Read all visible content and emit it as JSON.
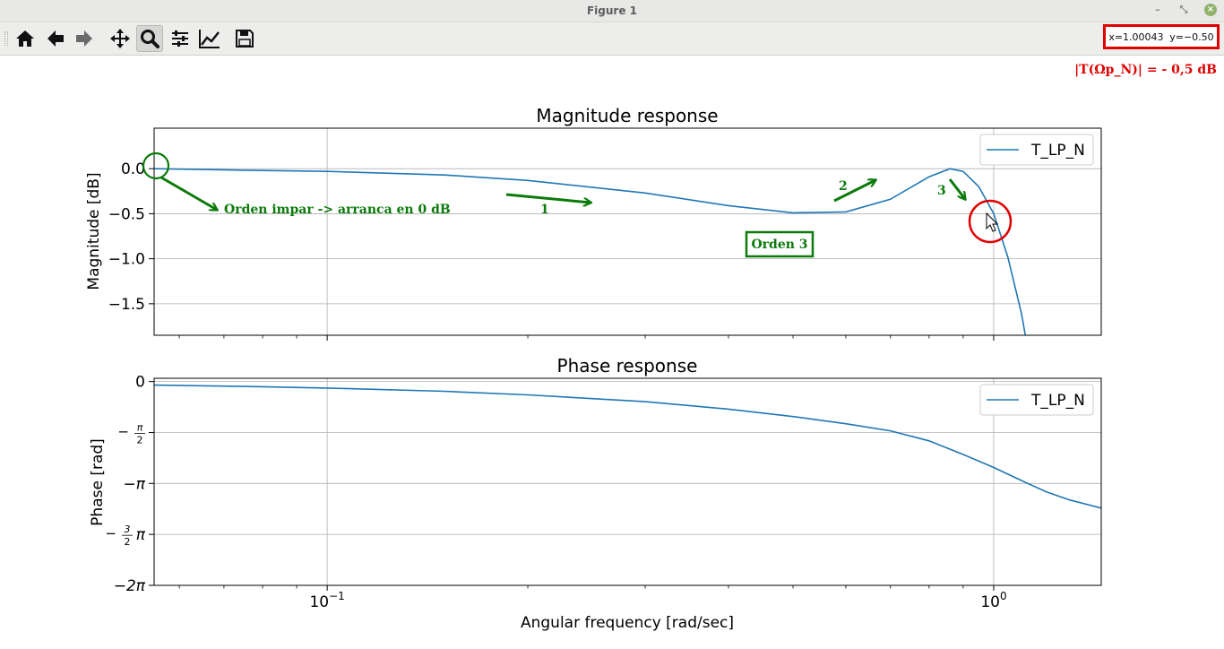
{
  "window": {
    "title": "Figure 1"
  },
  "toolbar": {
    "buttons": [
      "home-icon",
      "back-icon",
      "forward-icon",
      "pan-icon",
      "zoom-icon",
      "configure-icon",
      "edit-curves-icon",
      "save-icon"
    ],
    "coords": {
      "x": "x=1.00043",
      "y": "y=−0.50"
    }
  },
  "annotations": {
    "top_right": "|T(Ωp_N)| = - 0,5 dB",
    "odd_order": "Orden impar -> arranca en 0 dB",
    "order_box": "Orden 3",
    "n1": "1",
    "n2": "2",
    "n3": "3"
  },
  "colors": {
    "line": "#1f77b4",
    "annotation_green": "#0a7a0a",
    "highlight_red": "#e00000"
  },
  "chart_data": [
    {
      "type": "line",
      "title": "Magnitude response",
      "ylabel": "Magnitude [dB]",
      "xscale": "log",
      "xlim": [
        0.055,
        1.45
      ],
      "ylim": [
        -1.85,
        0.45
      ],
      "yticks": [
        "0.0",
        "−0.5",
        "−1.0",
        "−1.5"
      ],
      "legend": {
        "position": "top-right",
        "entries": [
          "T_LP_N"
        ]
      },
      "grid": true,
      "series": [
        {
          "name": "T_LP_N",
          "x": [
            0.055,
            0.08,
            0.1,
            0.15,
            0.2,
            0.3,
            0.4,
            0.5,
            0.6,
            0.7,
            0.8,
            0.86,
            0.9,
            0.95,
            1.0,
            1.05,
            1.1,
            1.15
          ],
          "y": [
            0.0,
            -0.02,
            -0.03,
            -0.07,
            -0.13,
            -0.27,
            -0.41,
            -0.49,
            -0.48,
            -0.34,
            -0.09,
            0.0,
            -0.03,
            -0.2,
            -0.5,
            -0.98,
            -1.6,
            -2.4
          ]
        }
      ]
    },
    {
      "type": "line",
      "title": "Phase response",
      "ylabel": "Phase [rad]",
      "xlabel": "Angular frequency [rad/sec]",
      "xscale": "log",
      "xlim": [
        0.055,
        1.45
      ],
      "ylim": [
        -6.2832,
        0.1
      ],
      "xticks": [
        "10−1",
        "100"
      ],
      "yticks": [
        "0",
        "−π/2",
        "−π",
        "−3/2 π",
        "−2π"
      ],
      "legend": {
        "position": "top-right",
        "entries": [
          "T_LP_N"
        ]
      },
      "grid": true,
      "series": [
        {
          "name": "T_LP_N",
          "x": [
            0.055,
            0.08,
            0.1,
            0.15,
            0.2,
            0.3,
            0.4,
            0.5,
            0.6,
            0.7,
            0.8,
            0.9,
            1.0,
            1.1,
            1.2,
            1.3,
            1.45
          ],
          "y": [
            -0.11,
            -0.16,
            -0.2,
            -0.3,
            -0.41,
            -0.62,
            -0.85,
            -1.08,
            -1.3,
            -1.52,
            -1.83,
            -2.25,
            -2.65,
            -3.05,
            -3.4,
            -3.65,
            -3.9
          ]
        }
      ]
    }
  ]
}
